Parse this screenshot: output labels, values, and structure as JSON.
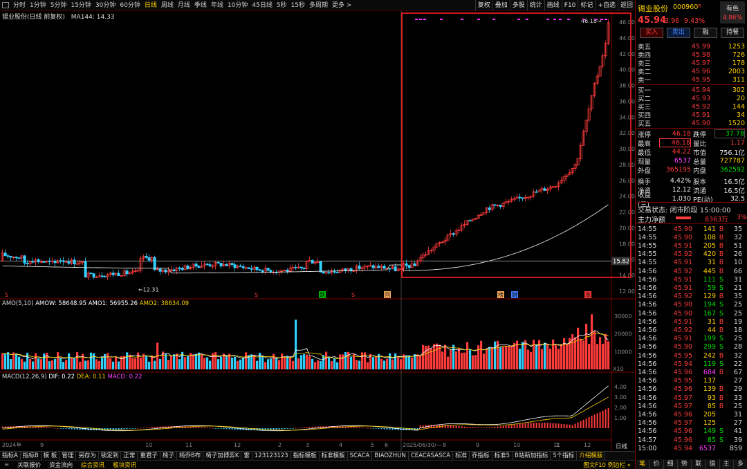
{
  "topbar": {
    "periods": [
      "分时",
      "1分钟",
      "5分钟",
      "15分钟",
      "30分钟",
      "60分钟",
      "日线",
      "周线",
      "月线",
      "季线",
      "年线",
      "10分钟",
      "45日线",
      "5秒",
      "15秒",
      "多周期",
      "更多 >"
    ],
    "active_period": "日线",
    "right_buttons": [
      "复权",
      "叠加",
      "多股",
      "统计",
      "画线",
      "F10",
      "标记",
      "+自选",
      "返回"
    ]
  },
  "chart": {
    "title": "锡业股份(日线 前复权)",
    "ma_label": "MA144: 14.33",
    "price_ticks": [
      "46.00",
      "44.00",
      "42.00",
      "40.00",
      "38.00",
      "36.00",
      "34.00",
      "32.00",
      "30.00",
      "28.00",
      "26.00",
      "24.00",
      "22.00",
      "20.00",
      "18.00",
      "16.00",
      "14.00",
      "12.00"
    ],
    "current_price_tag": "15.82",
    "high_label": "46.18",
    "low_label": "12.31",
    "event_marks": [
      "S",
      "S",
      "跌",
      "S",
      "回",
      "榜",
      "财",
      "涨"
    ],
    "date_labels": [
      "2024年",
      "9",
      "10",
      "11",
      "12",
      "2",
      "3",
      "4",
      "5",
      "6",
      "2025/06/30/—",
      "8",
      "9",
      "10",
      "11",
      "12",
      "1"
    ],
    "amo_title": "AMO(5,10)",
    "amo_values": {
      "amow": "AMOW: 58648.95",
      "amo1": "AMO1: 56955.26",
      "amo2": "AMO2: 38634.09"
    },
    "amo_ticks": [
      "30000",
      "20000",
      "10000"
    ],
    "amo_unit": "X10",
    "macd_title": "MACD(12,26,9)",
    "macd_values": {
      "dif": "DIF: 0.22",
      "dea": "DEA: 0.11",
      "macd": "MACD: 0.22"
    },
    "macd_ticks": [
      "4.00",
      "3.00",
      "2.00",
      "1.00"
    ],
    "day_label": "日线"
  },
  "bottombar": {
    "tabs": [
      "指标A",
      "指标B",
      "模 板",
      "管理",
      "另存为",
      "锁定到",
      "正常",
      "重君子",
      "椅子",
      "椅乔B布",
      "椅子加博弈K",
      "雷",
      "123123123",
      "指标模板",
      "标准模板",
      "SCACA",
      "BIAOZHUN",
      "CEACASASCA",
      "标准",
      "乔指标",
      "标准5",
      "B站新加指标",
      "5个指标",
      "介绍模版"
    ],
    "active": "介绍模版"
  },
  "footbar": {
    "items": [
      "关联报价",
      "资金流向",
      "综合资讯",
      "板块资讯"
    ],
    "right_text": "图文F10 例边栏 «",
    "right_tabs": [
      "笔",
      "价",
      "细",
      "势",
      "联",
      "值",
      "主",
      "多"
    ]
  },
  "quote": {
    "name": "锡业股份",
    "code": "000960",
    "rz": "R",
    "badge_text": "有色",
    "badge_pct": "4.86%",
    "price": "45.94",
    "change": "3.96",
    "change_pct": "9.43%",
    "buttons": [
      "买入",
      "卖出",
      "融",
      "持餐"
    ],
    "sells": [
      {
        "label": "卖五",
        "price": "45.99",
        "vol": "1253"
      },
      {
        "label": "卖四",
        "price": "45.98",
        "vol": "726"
      },
      {
        "label": "卖三",
        "price": "45.97",
        "vol": "178"
      },
      {
        "label": "卖二",
        "price": "45.96",
        "vol": "2003"
      },
      {
        "label": "卖一",
        "price": "45.95",
        "vol": "311"
      }
    ],
    "buys": [
      {
        "label": "买一",
        "price": "45.94",
        "vol": "302"
      },
      {
        "label": "买二",
        "price": "45.93",
        "vol": "20"
      },
      {
        "label": "买三",
        "price": "45.92",
        "vol": "144"
      },
      {
        "label": "买四",
        "price": "45.91",
        "vol": "34"
      },
      {
        "label": "买五",
        "price": "45.90",
        "vol": "1520"
      }
    ],
    "stats": [
      {
        "l1": "涨停",
        "v1": "46.18",
        "l2": "跌停",
        "v2": "37.78"
      },
      {
        "l1": "最高",
        "v1": "46.18",
        "l2": "量比",
        "v2": "1.17"
      },
      {
        "l1": "最低",
        "v1": "44.22",
        "l2": "市值",
        "v2": "756.1亿"
      },
      {
        "l1": "现量",
        "v1": "6537",
        "l2": "总量",
        "v2": "727787"
      },
      {
        "l1": "外盘",
        "v1": "365195",
        "l2": "内盘",
        "v2": "362592"
      },
      {
        "l1": "换手",
        "v1": "4.42%",
        "l2": "股本",
        "v2": "16.5亿"
      },
      {
        "l1": "净资",
        "v1": "12.12",
        "l2": "流通",
        "v2": "16.5亿"
      },
      {
        "l1": "收益(三)",
        "v1": "1.030",
        "l2": "PE(动)",
        "v2": "32.5"
      }
    ],
    "trade_status": "交易状态: 闭市阶段 15:00:00",
    "main_flow_label": "主力净额",
    "main_flow_value": "8363万",
    "main_flow_pct": "3%",
    "ticks": [
      {
        "t": "14:55",
        "p": "45.90",
        "v": "141",
        "s": "B",
        "n": "35"
      },
      {
        "t": "14:55",
        "p": "45.90",
        "v": "108",
        "s": "B",
        "n": "32"
      },
      {
        "t": "14:55",
        "p": "45.91",
        "v": "205",
        "s": "B",
        "n": "51"
      },
      {
        "t": "14:55",
        "p": "45.92",
        "v": "420",
        "s": "B",
        "n": "26"
      },
      {
        "t": "14:55",
        "p": "45.91",
        "v": "31",
        "s": "B",
        "n": "10"
      },
      {
        "t": "14:56",
        "p": "45.92",
        "v": "445",
        "s": "B",
        "n": "66"
      },
      {
        "t": "14:56",
        "p": "45.91",
        "v": "111",
        "s": "S",
        "n": "31"
      },
      {
        "t": "14:56",
        "p": "45.91",
        "v": "59",
        "s": "S",
        "n": "21"
      },
      {
        "t": "14:56",
        "p": "45.92",
        "v": "129",
        "s": "B",
        "n": "35"
      },
      {
        "t": "14:56",
        "p": "45.90",
        "v": "194",
        "s": "S",
        "n": "25"
      },
      {
        "t": "14:56",
        "p": "45.90",
        "v": "167",
        "s": "S",
        "n": "25"
      },
      {
        "t": "14:56",
        "p": "45.91",
        "v": "31",
        "s": "B",
        "n": "19"
      },
      {
        "t": "14:56",
        "p": "45.92",
        "v": "44",
        "s": "B",
        "n": "18"
      },
      {
        "t": "14:56",
        "p": "45.91",
        "v": "199",
        "s": "S",
        "n": "25"
      },
      {
        "t": "14:56",
        "p": "45.90",
        "v": "299",
        "s": "S",
        "n": "28"
      },
      {
        "t": "14:56",
        "p": "45.95",
        "v": "242",
        "s": "B",
        "n": "32"
      },
      {
        "t": "14:56",
        "p": "45.94",
        "v": "119",
        "s": "S",
        "n": "22"
      },
      {
        "t": "14:56",
        "p": "45.96",
        "v": "684",
        "s": "B",
        "n": "67"
      },
      {
        "t": "14:56",
        "p": "45.95",
        "v": "137",
        "s": "",
        "n": "27"
      },
      {
        "t": "14:56",
        "p": "45.96",
        "v": "139",
        "s": "B",
        "n": "29"
      },
      {
        "t": "14:56",
        "p": "45.97",
        "v": "93",
        "s": "B",
        "n": "33"
      },
      {
        "t": "14:56",
        "p": "45.97",
        "v": "85",
        "s": "B",
        "n": "25"
      },
      {
        "t": "14:56",
        "p": "45.96",
        "v": "205",
        "s": "",
        "n": "31"
      },
      {
        "t": "14:56",
        "p": "45.97",
        "v": "125",
        "s": "",
        "n": "27"
      },
      {
        "t": "14:56",
        "p": "45.96",
        "v": "149",
        "s": "S",
        "n": "41"
      },
      {
        "t": "14:57",
        "p": "45.96",
        "v": "85",
        "s": "S",
        "n": "39"
      },
      {
        "t": "15:00",
        "p": "45.94",
        "v": "6537",
        "s": "",
        "n": "859"
      }
    ]
  },
  "colors": {
    "up": "#ff3b3b",
    "down": "#30d0ff",
    "ma": "#e0e0e0",
    "highlight_box": "#ff2020",
    "amo_line1": "#ffffff",
    "amo_line2": "#ffd200",
    "dif": "#ffffff",
    "dea": "#ffd200"
  }
}
